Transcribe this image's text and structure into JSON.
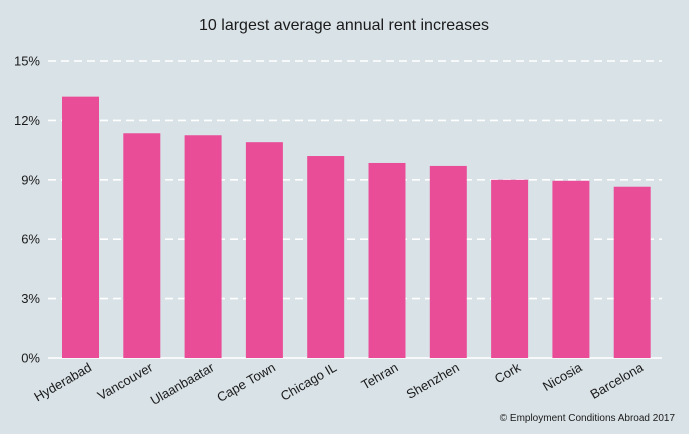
{
  "chart_data": {
    "type": "bar",
    "title": "10 largest average annual rent increases",
    "categories": [
      "Hyderabad",
      "Vancouver",
      "Ulaanbaatar",
      "Cape Town",
      "Chicago IL",
      "Tehran",
      "Shenzhen",
      "Cork",
      "Nicosia",
      "Barcelona"
    ],
    "values": [
      13.2,
      11.35,
      11.25,
      10.9,
      10.2,
      9.85,
      9.7,
      9.0,
      8.95,
      8.65
    ],
    "ylim": [
      0,
      15
    ],
    "yticks": [
      0,
      3,
      6,
      9,
      12,
      15
    ],
    "ytick_labels": [
      "0%",
      "3%",
      "6%",
      "9%",
      "12%",
      "15%"
    ],
    "xlabel": "",
    "ylabel": "",
    "grid": true,
    "bar_color": "#ea4d98",
    "grid_color": "#ffffff",
    "legend": "none"
  },
  "credit": "© Employment Conditions Abroad 2017"
}
